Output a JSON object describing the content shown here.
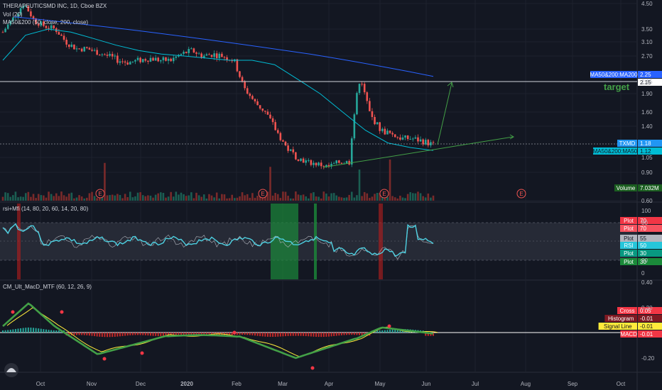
{
  "chart_data": {
    "title": "THERAPEUTICSMD INC, 1D, Cboe BZX",
    "symbol": "TXMD",
    "legend": {
      "volume": "Vol (20)",
      "ma": "MA50&200 (50, close, 200, close)"
    },
    "x_ticks": [
      "Oct",
      "Nov",
      "Dec",
      "2020",
      "Feb",
      "Mar",
      "Apr",
      "May",
      "Jun",
      "Jul",
      "Aug",
      "Sep",
      "Oct"
    ],
    "price_axis": {
      "type": "log",
      "ticks": [
        "4.50",
        "3.50",
        "3.10",
        "2.70",
        "2.15",
        "1.90",
        "1.60",
        "1.40",
        "1.05",
        "0.90",
        "0.60"
      ]
    },
    "price_labels": {
      "ma200": {
        "text": "MA50&200:MA200",
        "value": "2.25",
        "color": "#2962ff"
      },
      "target_value": "2.15",
      "txmd": {
        "text": "TXMD",
        "value": "1.18",
        "color": "#2196f3"
      },
      "ma50": {
        "text": "MA50&200:MA50",
        "value": "1.12",
        "color": "#00bcd4"
      },
      "volume": {
        "text": "Volume",
        "value": "7.032M",
        "color": "#1b5e20"
      }
    },
    "annotation_target": "target",
    "earnings_marker": "E",
    "series": {
      "close_approx": [
        3.4,
        3.9,
        4.5,
        3.8,
        3.6,
        3.5,
        3.1,
        2.9,
        2.9,
        2.8,
        2.7,
        2.6,
        2.55,
        2.6,
        2.65,
        2.6,
        2.6,
        2.75,
        2.85,
        2.7,
        2.75,
        2.7,
        2.6,
        2.0,
        1.75,
        1.6,
        1.35,
        1.15,
        1.05,
        1.0,
        0.98,
        0.95,
        1.0,
        1.0,
        2.2,
        1.55,
        1.35,
        1.3,
        1.25,
        1.25,
        1.22,
        1.18
      ],
      "ma200": [
        3.95,
        3.85,
        3.75,
        3.65,
        3.55,
        3.45,
        3.35,
        3.25,
        3.15,
        3.05,
        2.95,
        2.85,
        2.75,
        2.65,
        2.55,
        2.45,
        2.35,
        2.25
      ],
      "ma50": [
        2.6,
        3.3,
        3.5,
        3.4,
        3.2,
        3.0,
        2.85,
        2.75,
        2.7,
        2.65,
        2.6,
        2.6,
        2.5,
        2.2,
        1.9,
        1.6,
        1.35,
        1.2,
        1.15,
        1.12
      ]
    },
    "rsi_panel": {
      "title": "rsi+Mfi (14, 80, 20, 60, 14, 20, 80)",
      "ticks": [
        "100",
        "80",
        "20",
        "0"
      ],
      "tags": [
        {
          "text": "Plot",
          "value": "70",
          "color": "#f23645"
        },
        {
          "text": "Plot",
          "value": "70",
          "color": "#f7525f"
        },
        {
          "text": "Plot",
          "value": "55",
          "color": "#b2b5be"
        },
        {
          "text": "RSI",
          "value": "50",
          "color": "#26c6da"
        },
        {
          "text": "Plot",
          "value": "30",
          "color": "#089981"
        },
        {
          "text": "Plot",
          "value": "30",
          "color": "#1b8a3a"
        }
      ]
    },
    "macd_panel": {
      "title": "CM_Ult_MacD_MTF (60, 12, 26, 9)",
      "ticks": [
        "0.40",
        "0.20",
        "-0.20"
      ],
      "tags": [
        {
          "text": "Cross",
          "value": "0.05",
          "color": "#f23645"
        },
        {
          "text": "Histogram",
          "value": "-0.01",
          "color": "#801922"
        },
        {
          "text": "Signal Line",
          "value": "-0.01",
          "color": "#ffeb3b"
        },
        {
          "text": "MACD",
          "value": "-0.01",
          "color": "#f23645"
        }
      ]
    }
  }
}
